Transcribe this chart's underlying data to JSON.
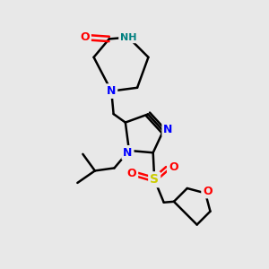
{
  "bg_color": "#e8e8e8",
  "atom_colors": {
    "C": "#000000",
    "N": "#0000ff",
    "NH": "#008080",
    "O": "#ff0000",
    "S": "#cccc00"
  },
  "bond_color": "#000000",
  "bond_width": 1.8,
  "figsize": [
    3.0,
    3.0
  ],
  "dpi": 100
}
